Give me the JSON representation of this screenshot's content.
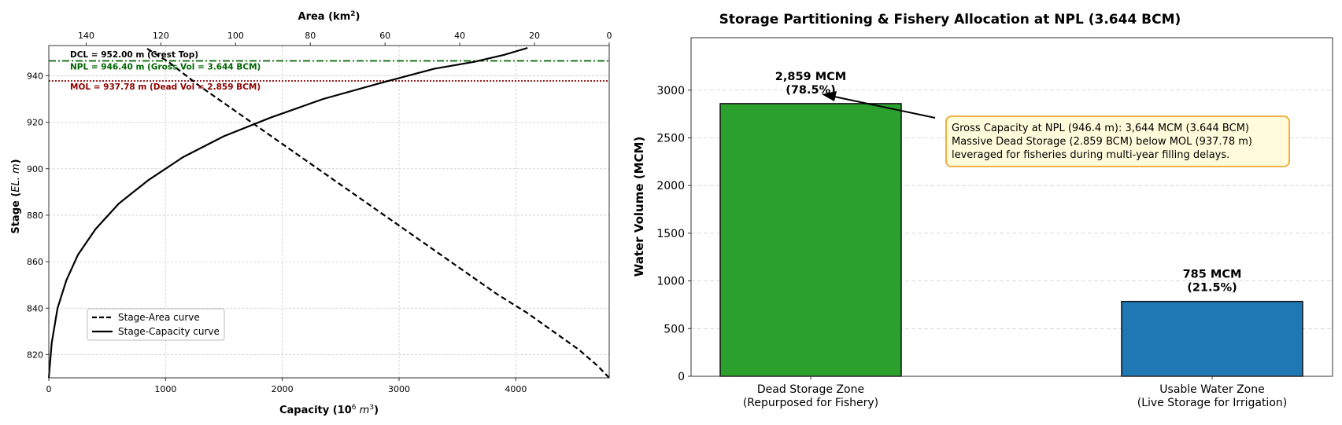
{
  "chart_data": [
    {
      "type": "line",
      "xlabel_bottom": "Capacity (10",
      "xlabel_bottom_sup": "6",
      "xlabel_bottom_unit": " m",
      "xlabel_bottom_unit_sup": "3",
      "xlabel_bottom_close": ")",
      "xlabel_top": "Area (km",
      "xlabel_top_sup": "2",
      "xlabel_top_close": ")",
      "ylabel": "Stage (",
      "ylabel_italic": "EL. m",
      "ylabel_close": ")",
      "xlim_bottom": [
        0,
        4800
      ],
      "xlim_top": [
        150,
        0
      ],
      "ylim": [
        810,
        953
      ],
      "grid": true,
      "legend_position": "lower-left",
      "xticks_bottom": [
        0,
        1000,
        2000,
        3000,
        4000
      ],
      "xticks_top": [
        140,
        120,
        100,
        80,
        60,
        40,
        20,
        0
      ],
      "yticks": [
        820,
        840,
        860,
        880,
        900,
        920,
        940
      ],
      "series": [
        {
          "name": "Stage-Area curve",
          "style": "dashed",
          "axis": "top",
          "x": [
            0,
            3,
            8,
            15,
            22,
            30,
            38,
            46,
            54,
            62,
            70,
            78,
            86,
            94,
            102,
            110,
            118,
            124
          ],
          "y": [
            810,
            815,
            822,
            830,
            838,
            846,
            855,
            864,
            873,
            882,
            891,
            900,
            909,
            918,
            927,
            936,
            946,
            952
          ]
        },
        {
          "name": "Stage-Capacity curve",
          "style": "solid",
          "axis": "bottom",
          "x": [
            0,
            25,
            75,
            150,
            250,
            400,
            600,
            850,
            1150,
            1500,
            1900,
            2350,
            2850,
            3300,
            3644,
            3900,
            4100
          ],
          "y": [
            810,
            825,
            840,
            852,
            863,
            874,
            885,
            895,
            905,
            914,
            922,
            930,
            937,
            943,
            946,
            949,
            952
          ]
        }
      ],
      "reference_lines": [
        {
          "label": "DCL = 952.00 m (Crest Top)",
          "y": 952.0,
          "color": "#000000",
          "style": "none"
        },
        {
          "label": "NPL = 946.40 m (Gross Vol = 3.644 BCM)",
          "y": 946.4,
          "color": "#006400",
          "style": "dashdot"
        },
        {
          "label": "MOL = 937.78 m (Dead Vol = 2.859 BCM)",
          "y": 937.78,
          "color": "#8b0000",
          "style": "dotted"
        }
      ]
    },
    {
      "type": "bar",
      "title": "Storage Partitioning & Fishery Allocation at NPL (3.644 BCM)",
      "ylabel": "Water Volume (MCM)",
      "ylim": [
        0,
        3550
      ],
      "yticks": [
        0,
        500,
        1000,
        1500,
        2000,
        2500,
        3000
      ],
      "grid": true,
      "categories": [
        {
          "line1": "Dead Storage Zone",
          "line2": "(Repurposed for Fishery)"
        },
        {
          "line1": "Usable Water Zone",
          "line2": "(Live Storage for Irrigation)"
        }
      ],
      "values": [
        2859,
        785
      ],
      "colors": [
        "#2ca02c",
        "#1f77b4"
      ],
      "bar_labels": [
        {
          "line1": "2,859 MCM",
          "line2": "(78.5%)"
        },
        {
          "line1": "785 MCM",
          "line2": "(21.5%)"
        }
      ],
      "annotation": {
        "lines": [
          "Gross Capacity at NPL (946.4 m): 3,644 MCM (3.644 BCM)",
          "Massive Dead Storage (2.859 BCM) below MOL (937.78 m)",
          "leveraged for fisheries during multi-year filling delays."
        ],
        "box_fill": "#fffbdb",
        "box_stroke": "#f0a830"
      }
    }
  ]
}
